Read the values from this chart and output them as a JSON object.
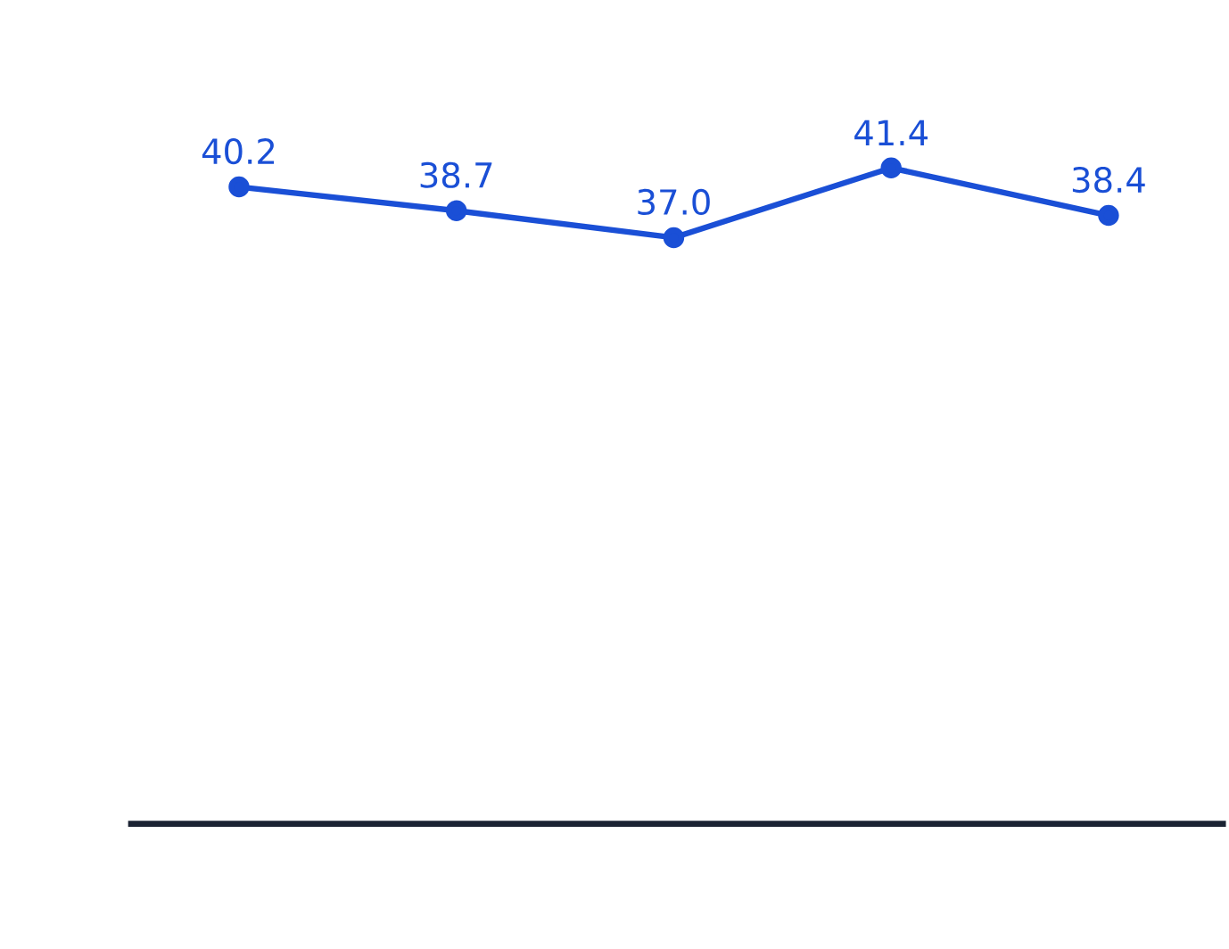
{
  "chart_data": {
    "type": "line",
    "categories": [
      null,
      null,
      null,
      null,
      null
    ],
    "series": [
      {
        "color": "#1a4fd6",
        "values": [
          40.2,
          38.7,
          37.0,
          41.4,
          38.4
        ],
        "value_labels": [
          "40.2",
          "38.7",
          "37.0",
          "41.4",
          "38.4"
        ]
      }
    ],
    "marker": "circle",
    "line_style": "solid"
  }
}
